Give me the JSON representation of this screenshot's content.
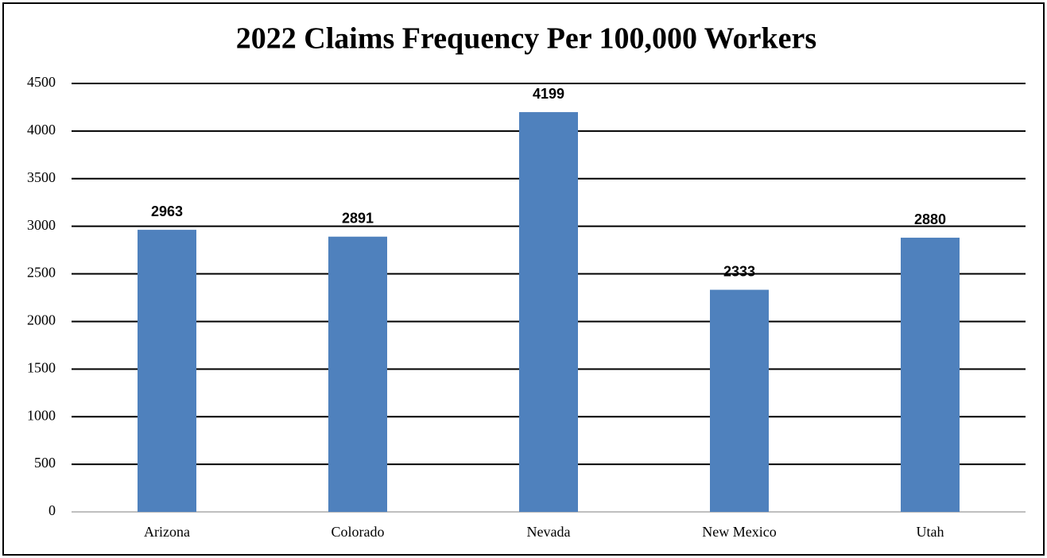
{
  "chart_data": {
    "type": "bar",
    "title": "2022 Claims Frequency Per 100,000 Workers",
    "categories": [
      "Arizona",
      "Colorado",
      "Nevada",
      "New Mexico",
      "Utah"
    ],
    "values": [
      2963,
      2891,
      4199,
      2333,
      2880
    ],
    "color": "#4f81bd",
    "ylim": [
      0,
      4500
    ],
    "yticks": [
      0,
      500,
      1000,
      1500,
      2000,
      2500,
      3000,
      3500,
      4000,
      4500
    ],
    "grid": true
  }
}
